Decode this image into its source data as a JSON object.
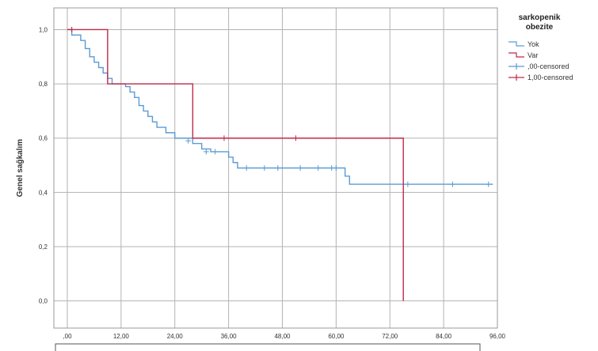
{
  "chart_data": {
    "type": "line",
    "ylabel": "Genel sağkalım",
    "xlim": [
      -3,
      96
    ],
    "ylim": [
      -0.1,
      1.08
    ],
    "x_ticks": [
      0,
      12,
      24,
      36,
      48,
      60,
      72,
      84,
      96
    ],
    "x_tick_labels": [
      ",00",
      "12,00",
      "24,00",
      "36,00",
      "48,00",
      "60,00",
      "72,00",
      "84,00",
      "96,00"
    ],
    "y_ticks": [
      0.0,
      0.2,
      0.4,
      0.6,
      0.8,
      1.0
    ],
    "y_tick_labels": [
      "0,0",
      "0,2",
      "0,4",
      "0,6",
      "0,8",
      "1,0"
    ],
    "grid": true,
    "legend": {
      "title": "sarkopenik obezite",
      "title_lines": [
        "sarkopenik",
        "obezite"
      ],
      "position": "top-right",
      "entries": [
        {
          "label": "Yok",
          "symbol": "step",
          "color": "#5b9bd5"
        },
        {
          "label": "Var",
          "symbol": "step",
          "color": "#c0294a"
        },
        {
          "label": ",00-censored",
          "symbol": "cross",
          "color": "#5b9bd5"
        },
        {
          "label": "1,00-censored",
          "symbol": "cross",
          "color": "#c0294a"
        }
      ]
    },
    "series": [
      {
        "name": "Yok",
        "color": "#5b9bd5",
        "steps": [
          [
            0,
            1.0
          ],
          [
            1,
            0.98
          ],
          [
            3,
            0.96
          ],
          [
            4,
            0.93
          ],
          [
            5,
            0.9
          ],
          [
            6,
            0.88
          ],
          [
            7,
            0.86
          ],
          [
            8,
            0.84
          ],
          [
            9,
            0.82
          ],
          [
            10,
            0.8
          ],
          [
            13,
            0.79
          ],
          [
            14,
            0.77
          ],
          [
            15,
            0.75
          ],
          [
            16,
            0.72
          ],
          [
            17,
            0.7
          ],
          [
            18,
            0.68
          ],
          [
            19,
            0.66
          ],
          [
            20,
            0.64
          ],
          [
            22,
            0.62
          ],
          [
            24,
            0.6
          ],
          [
            28,
            0.58
          ],
          [
            30,
            0.56
          ],
          [
            32,
            0.55
          ],
          [
            36,
            0.53
          ],
          [
            37,
            0.51
          ],
          [
            38,
            0.49
          ],
          [
            62,
            0.46
          ],
          [
            63,
            0.43
          ],
          [
            95,
            0.43
          ]
        ],
        "censored": [
          [
            1,
            1.0
          ],
          [
            27,
            0.59
          ],
          [
            31,
            0.55
          ],
          [
            33,
            0.55
          ],
          [
            40,
            0.49
          ],
          [
            44,
            0.49
          ],
          [
            47,
            0.49
          ],
          [
            52,
            0.49
          ],
          [
            56,
            0.49
          ],
          [
            59,
            0.49
          ],
          [
            60,
            0.49
          ],
          [
            76,
            0.43
          ],
          [
            86,
            0.43
          ],
          [
            94,
            0.43
          ]
        ]
      },
      {
        "name": "Var",
        "color": "#c0294a",
        "steps": [
          [
            0,
            1.0
          ],
          [
            9,
            0.8
          ],
          [
            28,
            0.6
          ],
          [
            75,
            0.0
          ]
        ],
        "censored": [
          [
            1,
            1.0
          ],
          [
            35,
            0.6
          ],
          [
            51,
            0.6
          ]
        ]
      }
    ]
  }
}
